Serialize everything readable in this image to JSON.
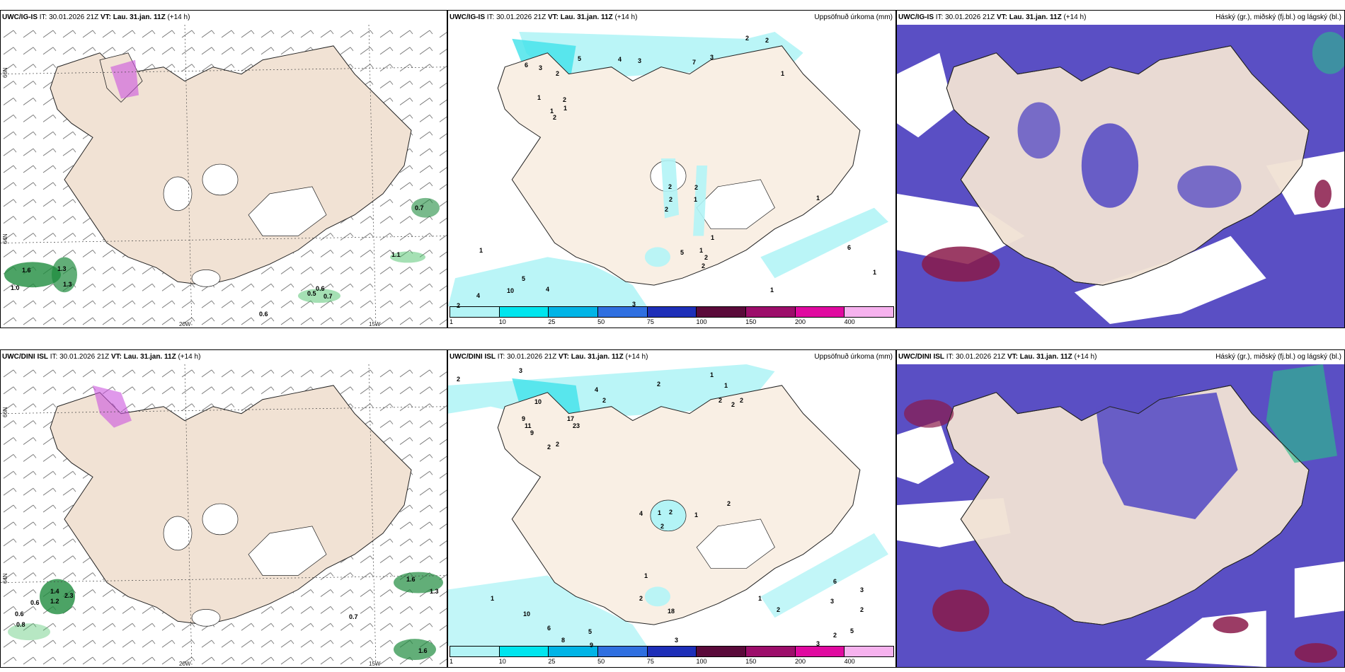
{
  "colors": {
    "land": "#f1e2d4",
    "precip_light": "#b3f4f6",
    "precip_mid": "#40e2ea",
    "cloud_high": "#5a4fc4",
    "cloud_mid": "#7b73d8",
    "cloud_low": "#8a1a4a",
    "green_precip": "#1f8c3f",
    "pink": "#cc55dd"
  },
  "panels": {
    "p1": {
      "model": "UWC/IG-IS",
      "it_label": "IT:",
      "it": "30.01.2026 21Z",
      "vt_label": "VT:",
      "vt": "Lau. 31.jan. 11Z",
      "lead": "(+14 h)"
    },
    "p2": {
      "model": "UWC/IG-IS",
      "it_label": "IT:",
      "it": "30.01.2026 21Z",
      "vt_label": "VT:",
      "vt": "Lau. 31.jan. 11Z",
      "lead": "(+14 h)",
      "title_right": "Uppsöfnuð úrkoma (mm)"
    },
    "p3": {
      "model": "UWC/IG-IS",
      "it_label": "IT:",
      "it": "30.01.2026 21Z",
      "vt_label": "VT:",
      "vt": "Lau. 31.jan. 11Z",
      "lead": "(+14 h)",
      "title_right": "Háský (gr.), miðský (fj.bl.) og lágský (bl.)"
    },
    "p4": {
      "model": "UWC/DINI ISL",
      "it_label": "IT:",
      "it": "30.01.2026 21Z",
      "vt_label": "VT:",
      "vt": "Lau. 31.jan. 11Z",
      "lead": "(+14 h)"
    },
    "p5": {
      "model": "UWC/DINI ISL",
      "it_label": "IT:",
      "it": "30.01.2026 21Z",
      "vt_label": "VT:",
      "vt": "Lau. 31.jan. 11Z",
      "lead": "(+14 h)",
      "title_right": "Uppsöfnuð úrkoma (mm)"
    },
    "p6": {
      "model": "UWC/DINI ISL",
      "it_label": "IT:",
      "it": "30.01.2026 21Z",
      "vt_label": "VT:",
      "vt": "Lau. 31.jan. 11Z",
      "lead": "(+14 h)",
      "title_right": "Háský (gr.), miðský (fj.bl.) og lágský (bl.)"
    }
  },
  "axes": {
    "lon_20w": "20W",
    "lon_15w": "15W",
    "lat_66n": "66N",
    "lat_64n": "64N"
  },
  "colorbar": {
    "ticks": [
      "1",
      "10",
      "25",
      "50",
      "75",
      "100",
      "150",
      "200",
      "400"
    ],
    "colors": [
      "#b3f4f6",
      "#00e5ee",
      "#00b4e6",
      "#2f6fe0",
      "#1e2fb8",
      "#5a0a3a",
      "#9c0e6a",
      "#e00aa0",
      "#f6b2ee"
    ]
  },
  "labels": {
    "p1": [
      "0.7",
      "1.1",
      "1.6",
      "1.3",
      "1.3",
      "1.0",
      "0.6",
      "0.5",
      "0.7",
      "0.6"
    ],
    "p2": [
      "5",
      "4",
      "3",
      "7",
      "3",
      "2",
      "2",
      "1",
      "6",
      "3",
      "2",
      "1",
      "1",
      "1",
      "2",
      "2",
      "2",
      "2",
      "2",
      "1",
      "2",
      "1",
      "1",
      "5",
      "2",
      "2",
      "10",
      "5",
      "4",
      "1",
      "4",
      "2",
      "3",
      "1",
      "6",
      "1",
      "1"
    ],
    "p4": [
      "1.4",
      "1.2",
      "2.3",
      "0.6",
      "0.6",
      "0.8",
      "0.7",
      "1.6",
      "1.3",
      "1.6"
    ],
    "p5": [
      "2",
      "3",
      "2",
      "4",
      "2",
      "1",
      "1",
      "2",
      "2",
      "2",
      "10",
      "9",
      "11",
      "9",
      "17",
      "23",
      "2",
      "2",
      "4",
      "1",
      "2",
      "2",
      "1",
      "2",
      "1",
      "1",
      "1",
      "6",
      "2",
      "18",
      "10",
      "6",
      "8",
      "9",
      "5",
      "3",
      "2",
      "3",
      "2",
      "3",
      "3",
      "5",
      "2"
    ]
  }
}
